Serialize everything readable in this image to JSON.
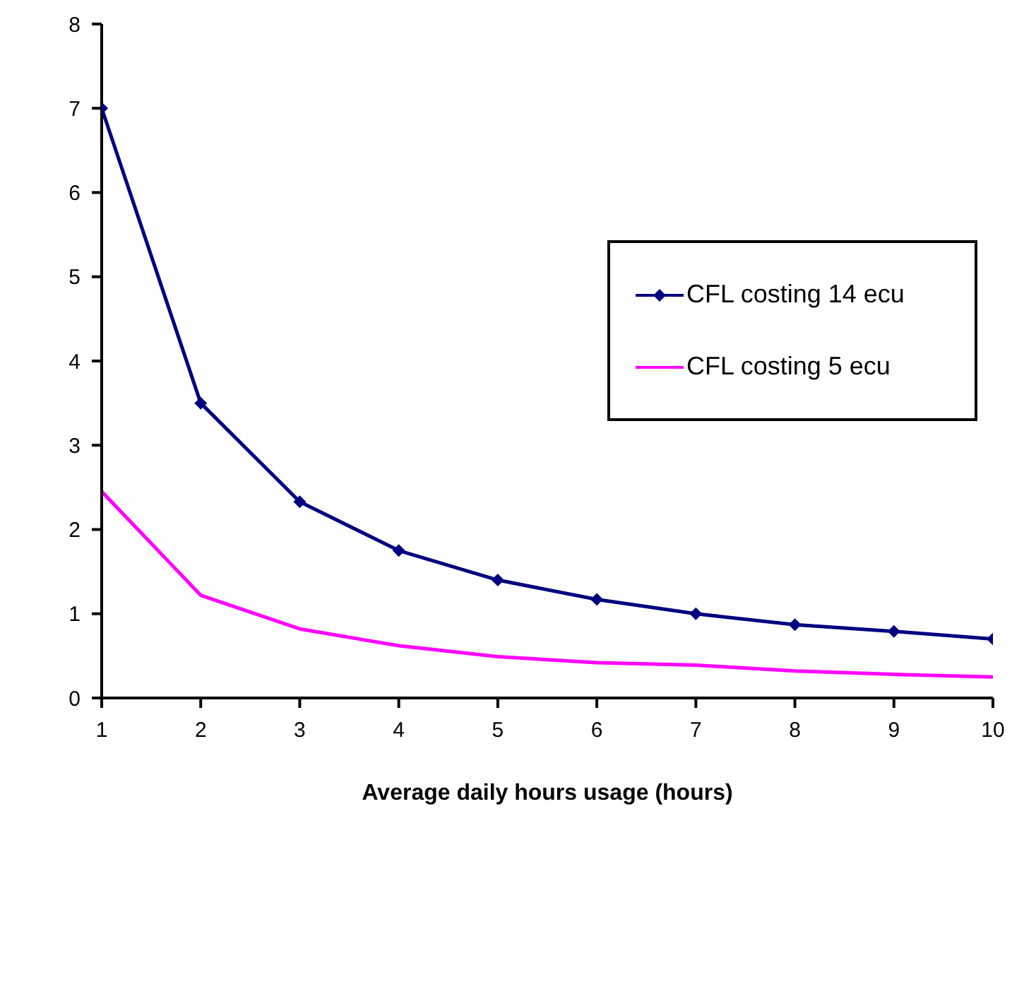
{
  "chart_data": {
    "type": "line",
    "xlabel": "Average daily hours usage (hours)",
    "x": [
      1,
      2,
      3,
      4,
      5,
      6,
      7,
      8,
      9,
      10
    ],
    "series": [
      {
        "name": "CFL costing 14 ecu",
        "color": "#000080",
        "marker": "diamond",
        "values": [
          7,
          3.5,
          2.33,
          1.75,
          1.4,
          1.17,
          1.0,
          0.87,
          0.79,
          0.7
        ]
      },
      {
        "name": "CFL costing 5 ecu",
        "color": "#ff00ff",
        "marker": "none",
        "values": [
          2.45,
          1.22,
          0.82,
          0.62,
          0.49,
          0.42,
          0.39,
          0.32,
          0.28,
          0.25
        ]
      }
    ],
    "xlim": [
      1,
      10
    ],
    "xticks": [
      1,
      2,
      3,
      4,
      5,
      6,
      7,
      8,
      9,
      10
    ],
    "ylim": [
      0,
      8
    ],
    "yticks": [
      0,
      1,
      2,
      3,
      4,
      5,
      6,
      7,
      8
    ],
    "grid": false,
    "legend": "right",
    "line_style": "solid"
  }
}
